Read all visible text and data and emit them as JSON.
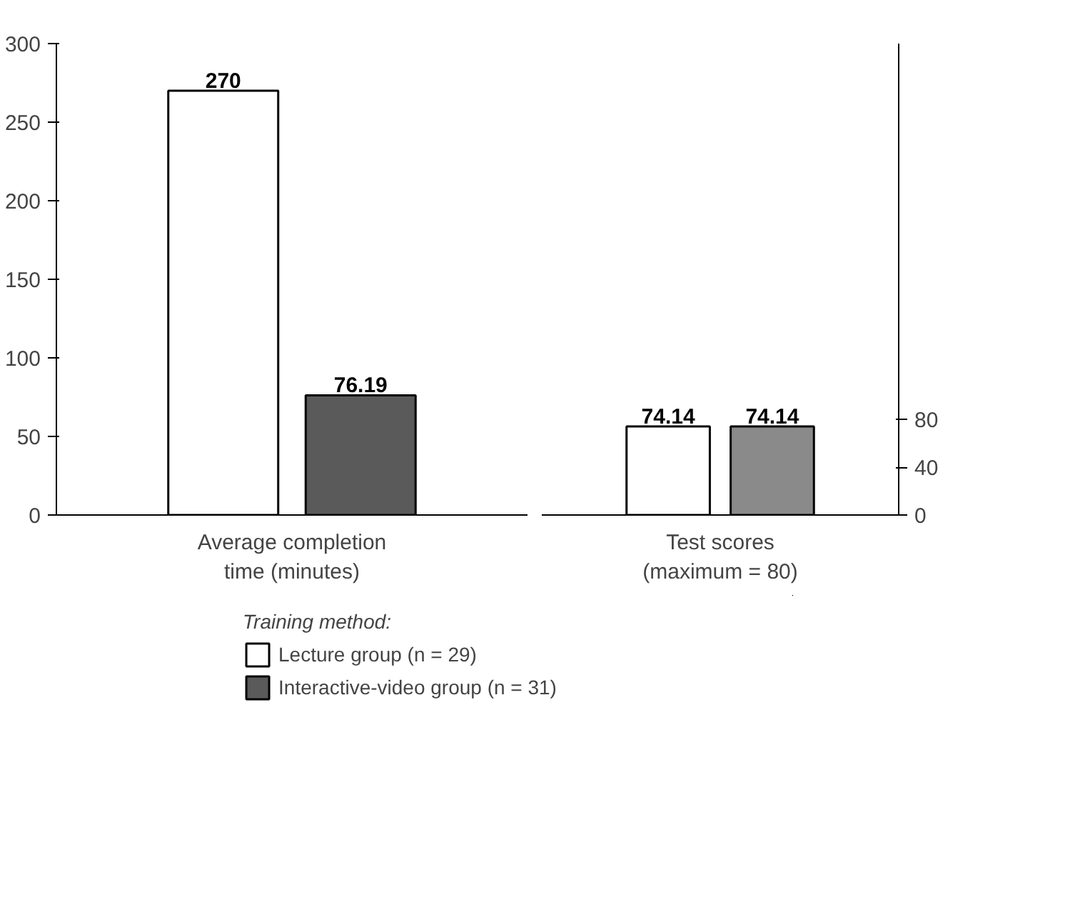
{
  "chart_data": [
    {
      "type": "bar",
      "categories": [
        "Average completion time (minutes)"
      ],
      "ylim": [
        0,
        300
      ],
      "yticks": [
        0,
        50,
        100,
        150,
        200,
        250,
        300
      ],
      "data_labels": true,
      "grid": false,
      "legend": "bottom",
      "legend_title": "Training method:",
      "series": [
        {
          "name": "Lecture group (n = 29)",
          "color": "#ffffff",
          "values": [
            270
          ]
        },
        {
          "name": "Interactive-video group (n = 31)",
          "color": "#5a5a5a",
          "values": [
            76.19
          ]
        }
      ]
    },
    {
      "type": "bar",
      "categories": [
        "Test scores (maximum = 80)"
      ],
      "ylim": [
        0,
        395
      ],
      "yticks": [
        0,
        40,
        80
      ],
      "data_labels": true,
      "grid": false,
      "series": [
        {
          "color": "#ffffff",
          "values": [
            74.14
          ]
        },
        {
          "color": "#8a8a8a",
          "values": [
            74.14
          ]
        }
      ]
    }
  ]
}
